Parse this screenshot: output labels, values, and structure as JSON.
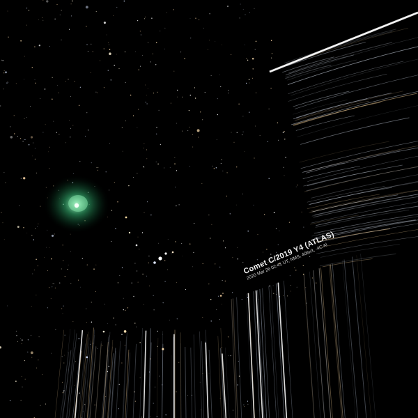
{
  "photo": {
    "caption_title": "Comet C/2019 Y4 (ATLAS)",
    "caption_details": "2020 Mar 26 02:41 UT, NMS, 406x3, -4C Al",
    "colors": {
      "sky": "#000000",
      "comet_coma": "#2e9a62",
      "comet_core": "#e8fff0",
      "star_trail": "#e6e6e6"
    },
    "elements": {
      "comet": "comet-icon",
      "stars": "star-field",
      "trails": "star-trails"
    }
  }
}
